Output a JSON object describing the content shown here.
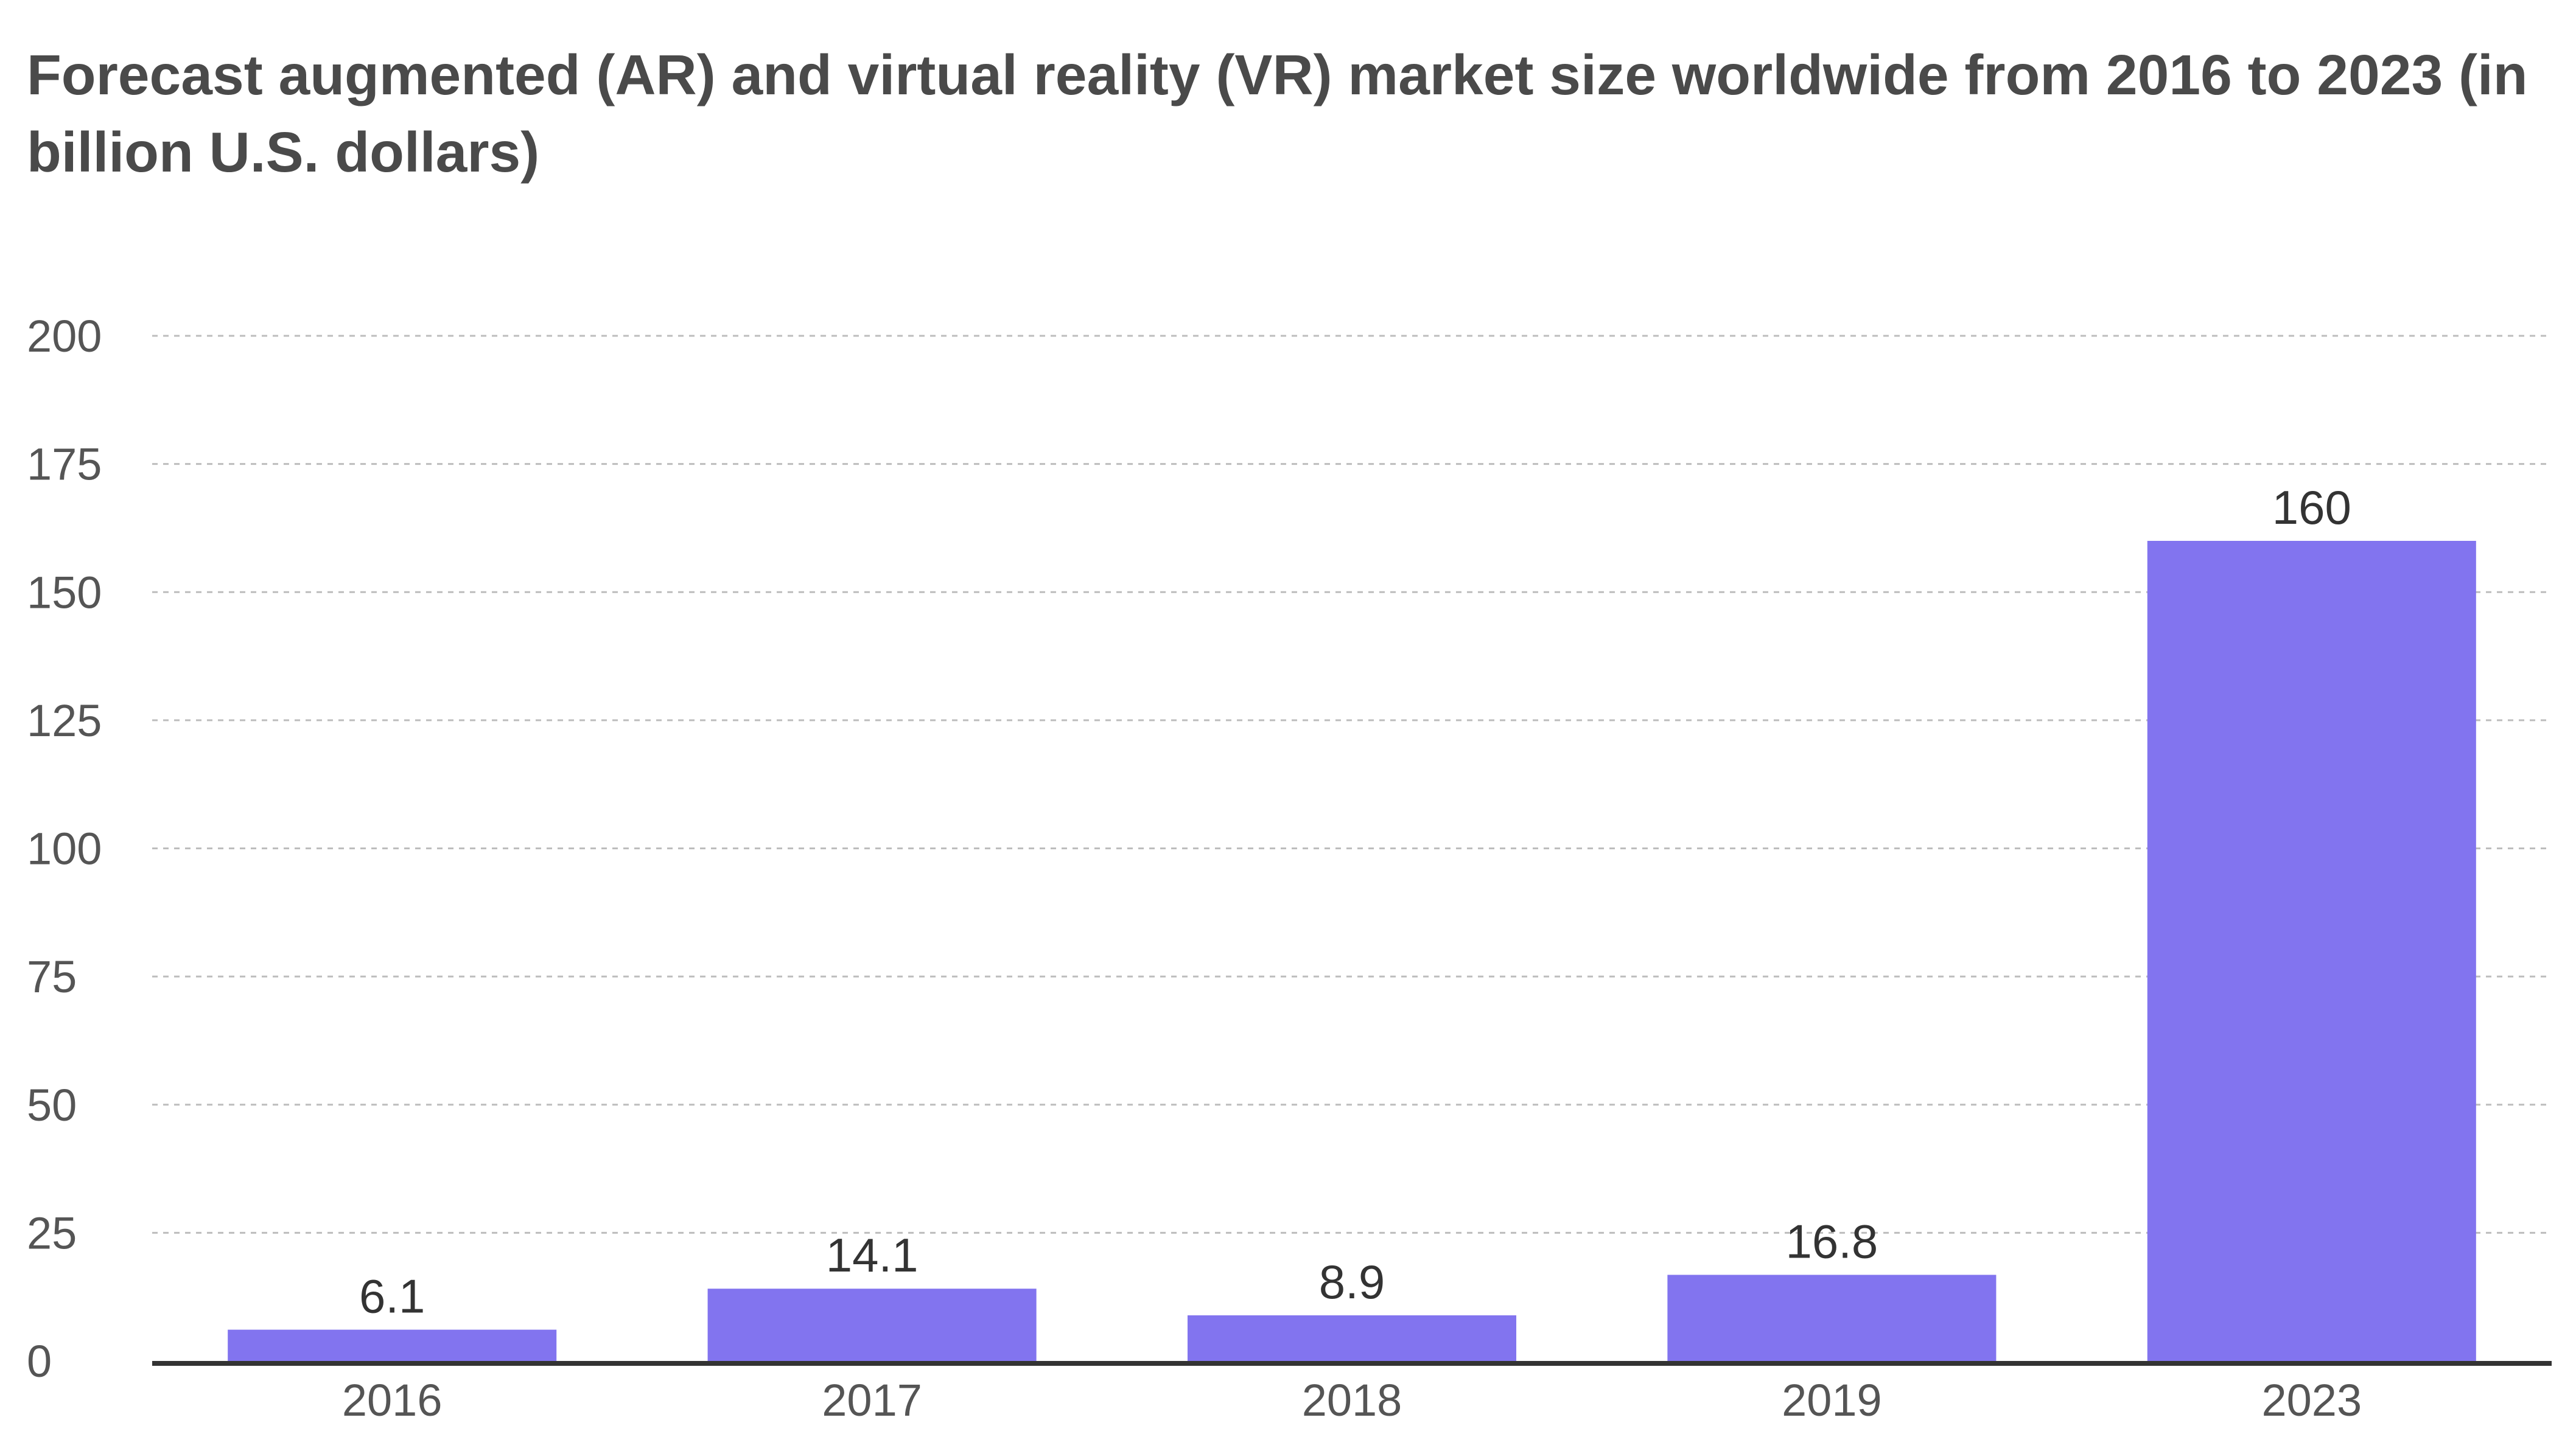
{
  "chart_data": {
    "type": "bar",
    "title": "Forecast augmented (AR) and virtual reality (VR) market size worldwide from 2016 to 2023 (in billion U.S. dollars)",
    "xlabel": "",
    "ylabel": "",
    "categories": [
      "2016",
      "2017",
      "2018",
      "2019",
      "2023"
    ],
    "values": [
      6.1,
      14.1,
      8.9,
      16.8,
      160
    ],
    "value_labels": [
      "6.1",
      "14.1",
      "8.9",
      "16.8",
      "160"
    ],
    "ylim": [
      0,
      200
    ],
    "yticks": [
      "0",
      "25",
      "50",
      "75",
      "100",
      "125",
      "150",
      "175",
      "200"
    ],
    "grid": true,
    "legend": "none",
    "bar_color": "#8274ef",
    "axis_color": "#333333",
    "grid_color": "#bdbdbd"
  }
}
